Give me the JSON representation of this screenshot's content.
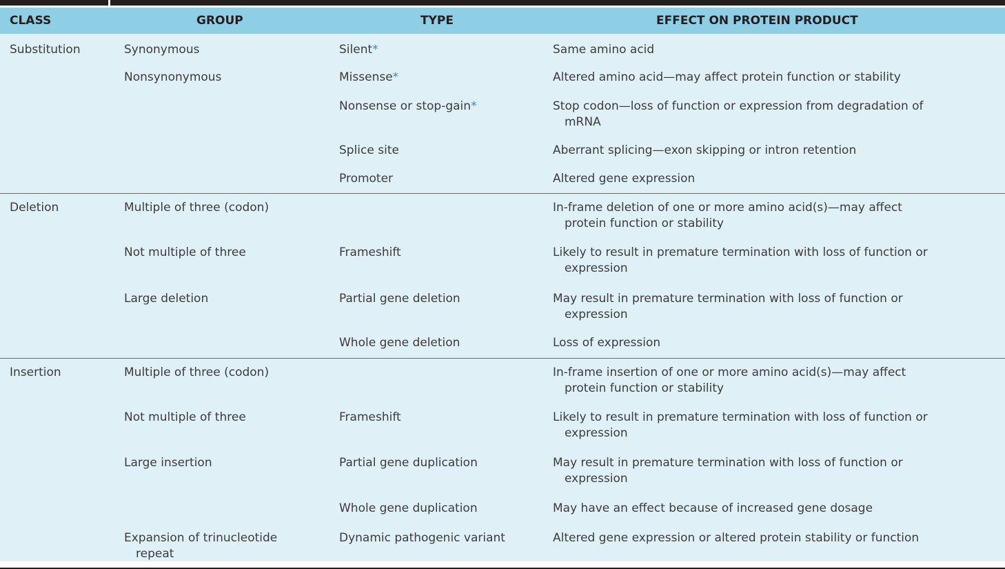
{
  "header": {
    "class": "CLASS",
    "group": "GROUP",
    "type": "TYPE",
    "effect": "EFFECT ON PROTEIN PRODUCT"
  },
  "rows": [
    {
      "class": "Substitution",
      "group": "Synonymous",
      "type": "Silent",
      "type_mark": "*",
      "effect": "Same amino acid"
    },
    {
      "class": "",
      "group": "Nonsynonymous",
      "type": "Missense",
      "type_mark": "*",
      "effect": "Altered amino acid—may affect protein function or stability"
    },
    {
      "class": "",
      "group": "",
      "type": "Nonsense or stop-gain",
      "type_mark": "*",
      "effect_line1": "Stop codon—loss of function or expression from degradation of",
      "effect_line2": "mRNA"
    },
    {
      "class": "",
      "group": "",
      "type": "Splice site",
      "effect": "Aberrant splicing—exon skipping or intron retention"
    },
    {
      "class": "",
      "group": "",
      "type": "Promoter",
      "effect": "Altered gene expression"
    },
    {
      "class": "Deletion",
      "group": "Multiple of three (codon)",
      "type": "",
      "effect_line1": "In-frame deletion of one or more amino acid(s)—may affect",
      "effect_line2": "protein function or stability"
    },
    {
      "class": "",
      "group": "Not multiple of three",
      "type": "Frameshift",
      "effect_line1": "Likely to result in premature termination with loss of function or",
      "effect_line2": "expression"
    },
    {
      "class": "",
      "group": "Large deletion",
      "type": "Partial gene deletion",
      "effect_line1": "May result in premature termination with loss of function or",
      "effect_line2": "expression"
    },
    {
      "class": "",
      "group": "",
      "type": "Whole gene deletion",
      "effect": "Loss of expression"
    },
    {
      "class": "Insertion",
      "group": "Multiple of three (codon)",
      "type": "",
      "effect_line1": "In-frame insertion of one or more amino acid(s)—may affect",
      "effect_line2": "protein function or stability"
    },
    {
      "class": "",
      "group": "Not multiple of three",
      "type": "Frameshift",
      "effect_line1": "Likely to result in premature termination with loss of function or",
      "effect_line2": "expression"
    },
    {
      "class": "",
      "group": "Large insertion",
      "type": "Partial gene duplication",
      "effect_line1": "May result in premature termination with loss of function or",
      "effect_line2": "expression"
    },
    {
      "class": "",
      "group": "",
      "type": "Whole gene duplication",
      "effect": "May have an effect because of increased gene dosage"
    },
    {
      "class": "",
      "group_line1": "Expansion of trinucleotide",
      "group_line2": "repeat",
      "type": "Dynamic pathogenic variant",
      "effect": "Altered gene expression or altered protein stability or function"
    }
  ]
}
